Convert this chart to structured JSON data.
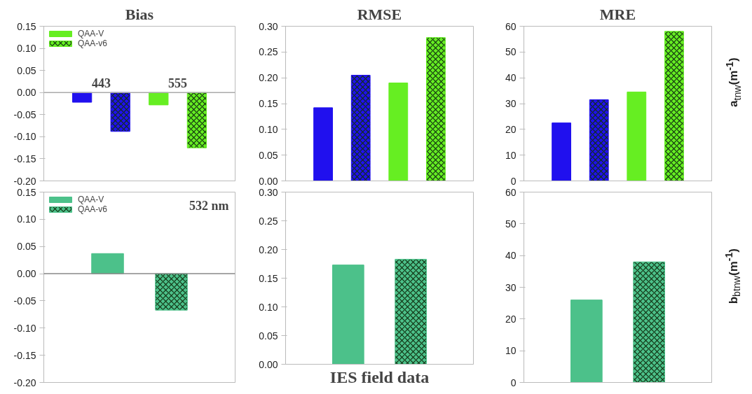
{
  "chart_data": [
    {
      "type": "bar",
      "title": "Bias",
      "categories": [
        null,
        null
      ],
      "tick_labels": "y",
      "legend": "top left",
      "ylim": [
        -0.2,
        0.15
      ],
      "yticks": [
        {
          "value": -0.2,
          "label": "-0.20"
        },
        -0.15,
        {
          "value": -0.1,
          "label": "-0.10"
        },
        -0.05,
        {
          "value": 0,
          "label": "0.00"
        },
        0.05,
        {
          "value": 0.1,
          "label": "0.10"
        },
        0.15
      ],
      "ref_lines": [
        {
          "axis": "y",
          "value": 0,
          "color": "#aaaaaa"
        }
      ],
      "annotations": [
        "443",
        "555"
      ],
      "series": [
        {
          "name": "QAA-V",
          "color": "#66ee22",
          "colors": [
            "#2010ee",
            "#66ee22"
          ],
          "values": [
            -0.022,
            -0.028
          ]
        },
        {
          "name": "QAA-v6",
          "color": "#66ee22",
          "colors": [
            "#2010ee",
            "#66ee22"
          ],
          "values": [
            -0.088,
            -0.125
          ]
        }
      ]
    },
    {
      "type": "bar",
      "title": "RMSE",
      "categories": [
        null,
        null
      ],
      "tick_labels": "y",
      "ylim": [
        0,
        0.3
      ],
      "yticks": [
        {
          "value": 0,
          "label": "0.00"
        },
        0.05,
        {
          "value": 0.1,
          "label": "0.10"
        },
        0.15,
        {
          "value": 0.2,
          "label": "0.20"
        },
        0.25,
        {
          "value": 0.3,
          "label": "0.30"
        }
      ],
      "series": [
        {
          "colors": [
            "#2010ee",
            "#66ee22"
          ],
          "values": [
            0.142,
            0.19
          ]
        },
        {
          "colors": [
            "#2010ee",
            "#66ee22"
          ],
          "values": [
            0.205,
            0.278
          ]
        }
      ]
    },
    {
      "type": "bar",
      "title": "MRE",
      "ylabel": "a$_{tnw}$(m$^{-1}$)",
      "categories": [
        null,
        null
      ],
      "tick_labels": "y",
      "ylim": [
        0,
        60
      ],
      "yticks": [
        0,
        10,
        20,
        30,
        40,
        50,
        60
      ],
      "series": [
        {
          "colors": [
            "#2010ee",
            "#66ee22"
          ],
          "values": [
            22.5,
            34.5
          ]
        },
        {
          "colors": [
            "#2010ee",
            "#66ee22"
          ],
          "values": [
            31.5,
            58
          ]
        }
      ]
    },
    {
      "type": "bar",
      "categories": [
        null
      ],
      "tick_labels": "y",
      "legend": "top left",
      "ylim": [
        -0.2,
        0.15
      ],
      "yticks": [
        {
          "value": -0.2,
          "label": "-0.20"
        },
        -0.15,
        {
          "value": -0.1,
          "label": "-0.10"
        },
        -0.05,
        {
          "value": 0,
          "label": "0.00"
        },
        0.05,
        {
          "value": 0.1,
          "label": "0.10"
        },
        0.15
      ],
      "ref_lines": [
        {
          "axis": "y",
          "value": 0,
          "color": "#888888"
        }
      ],
      "annotations": [
        "532 nm"
      ],
      "series": [
        {
          "name": "QAA-V",
          "color": "#4cc18a",
          "values": [
            0.037
          ]
        },
        {
          "name": "QAA-v6",
          "color": "#4cc18a",
          "values": [
            -0.067
          ]
        }
      ]
    },
    {
      "type": "bar",
      "xlabel": "IES field data",
      "categories": [
        null
      ],
      "tick_labels": "y",
      "ylim": [
        0,
        0.3
      ],
      "yticks": [
        {
          "value": 0,
          "label": "0.00"
        },
        0.05,
        {
          "value": 0.1,
          "label": "0.10"
        },
        0.15,
        {
          "value": 0.2,
          "label": "0.20"
        },
        0.25,
        {
          "value": 0.3,
          "label": "0.30"
        }
      ],
      "series": [
        {
          "color": "#4cc18a",
          "values": [
            0.173
          ]
        },
        {
          "color": "#4cc18a",
          "values": [
            0.183
          ]
        }
      ]
    },
    {
      "type": "bar",
      "ylabel": "b$_{btnw}$(m$^{-1}$)",
      "categories": [
        null
      ],
      "tick_labels": "y",
      "ylim": [
        0,
        60
      ],
      "yticks": [
        0,
        10,
        20,
        30,
        40,
        50,
        60
      ],
      "series": [
        {
          "color": "#4cc18a",
          "values": [
            26
          ]
        },
        {
          "color": "#4cc18a",
          "values": [
            38
          ]
        }
      ]
    }
  ]
}
